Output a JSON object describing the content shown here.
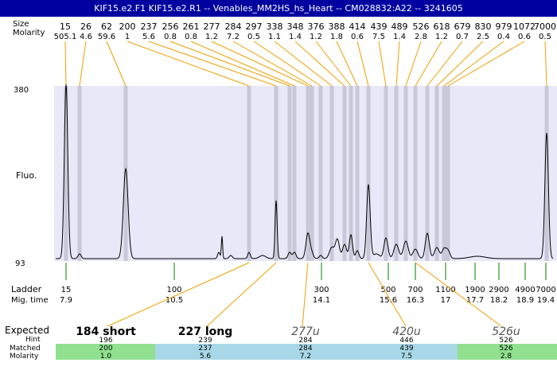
{
  "title": "KIF15.e2.F1  KIF15.e2.R1 -- Venables_MM2HS_hs_Heart -- CM028832:A22 -- 3241605",
  "labels": {
    "size": "Size",
    "molarity": "Molarity",
    "fluo": "Fluo.",
    "ladder": "Ladder",
    "mig_time": "Mig. time",
    "expected": "Expected",
    "hint": "Hint",
    "matched": "Matched",
    "molarity_bottom": "Molarity"
  },
  "y_axis": {
    "top": "380",
    "bottom": "93"
  },
  "peaks": [
    {
      "size": "15",
      "molarity": "505.1"
    },
    {
      "size": "26",
      "molarity": "4.6"
    },
    {
      "size": "62",
      "molarity": "59.6"
    },
    {
      "size": "200",
      "molarity": "1"
    },
    {
      "size": "237",
      "molarity": "5.6"
    },
    {
      "size": "256",
      "molarity": "0.8"
    },
    {
      "size": "261",
      "molarity": "0.8"
    },
    {
      "size": "277",
      "molarity": "1.2"
    },
    {
      "size": "284",
      "molarity": "7.2"
    },
    {
      "size": "297",
      "molarity": "0.5"
    },
    {
      "size": "338",
      "molarity": "1.1"
    },
    {
      "size": "348",
      "molarity": "1.4"
    },
    {
      "size": "376",
      "molarity": "1.2"
    },
    {
      "size": "388",
      "molarity": "1.8"
    },
    {
      "size": "414",
      "molarity": "0.6"
    },
    {
      "size": "439",
      "molarity": "7.5"
    },
    {
      "size": "489",
      "molarity": "1.4"
    },
    {
      "size": "526",
      "molarity": "2.8"
    },
    {
      "size": "618",
      "molarity": "1.2"
    },
    {
      "size": "679",
      "molarity": "0.7"
    },
    {
      "size": "830",
      "molarity": "2.5"
    },
    {
      "size": "979",
      "molarity": "0.4"
    },
    {
      "size": "1072",
      "molarity": "0.6"
    },
    {
      "size": "7000",
      "molarity": "0.5"
    }
  ],
  "ladder": [
    {
      "size": "15",
      "time": "7.9"
    },
    {
      "size": "100",
      "time": "10.5"
    },
    {
      "size": "300",
      "time": "14.1"
    },
    {
      "size": "500",
      "time": "15.6"
    },
    {
      "size": "700",
      "time": "16.3"
    },
    {
      "size": "1100",
      "time": "17"
    },
    {
      "size": "1900",
      "time": "17.7"
    },
    {
      "size": "2900",
      "time": "18.2"
    },
    {
      "size": "4900",
      "time": "18.9"
    },
    {
      "size": "7000",
      "time": "19.4"
    }
  ],
  "expected": [
    {
      "label": "184 short",
      "hint": "196",
      "matched": "200",
      "molarity": "1.0",
      "style": "bold",
      "color": "#90e090"
    },
    {
      "label": "227 long",
      "hint": "239",
      "matched": "237",
      "molarity": "5.6",
      "style": "bold",
      "color": "#a8d8e8"
    },
    {
      "label": "277u",
      "hint": "284",
      "matched": "284",
      "molarity": "7.2",
      "style": "italic",
      "color": "#a8d8e8"
    },
    {
      "label": "420u",
      "hint": "446",
      "matched": "439",
      "molarity": "7.5",
      "style": "italic",
      "color": "#a8d8e8"
    },
    {
      "label": "526u",
      "hint": "526",
      "matched": "526",
      "molarity": "2.8",
      "style": "italic",
      "color": "#90e090"
    }
  ],
  "colors": {
    "title_bg": "#0000a0",
    "plot_bg": "#e8e8f8",
    "band": "#c8c8d8",
    "peak_line": "#f0a000",
    "ladder_line": "#008000",
    "trace": "#000000"
  }
}
